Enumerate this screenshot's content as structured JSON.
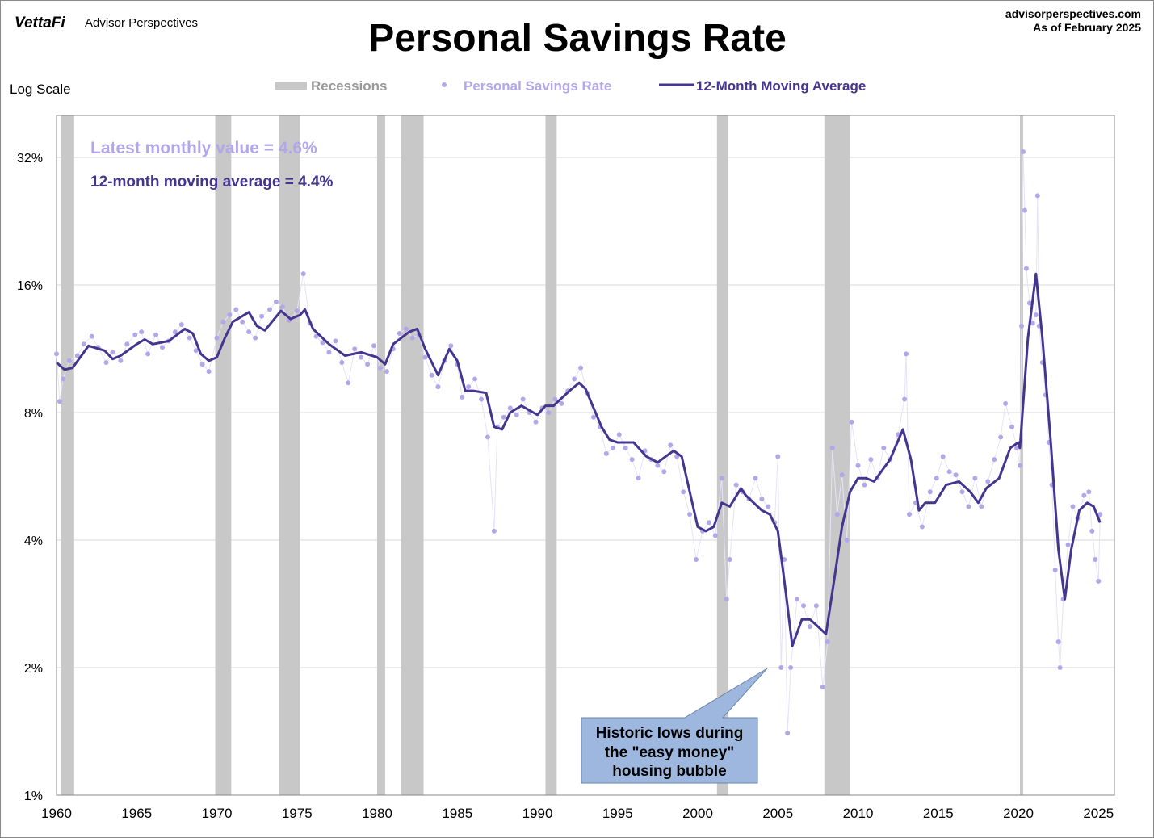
{
  "header": {
    "logo": "VettaFi",
    "brand": "Advisor Perspectives",
    "site": "advisorperspectives.com",
    "as_of": "As of February 2025"
  },
  "chart_data": {
    "type": "line",
    "title": "Personal Savings Rate",
    "scale_label": "Log Scale",
    "yscale": "log2",
    "ylim": [
      1,
      40
    ],
    "xlim": [
      1960,
      2026
    ],
    "yticks": [
      1,
      2,
      4,
      8,
      16,
      32
    ],
    "ytick_labels": [
      "1%",
      "2%",
      "4%",
      "8%",
      "16%",
      "32%"
    ],
    "xticks": [
      1960,
      1965,
      1970,
      1975,
      1980,
      1985,
      1990,
      1995,
      2000,
      2005,
      2010,
      2015,
      2020,
      2025
    ],
    "xtick_labels": [
      "1960",
      "1965",
      "1970",
      "1975",
      "1980",
      "1985",
      "1990",
      "1995",
      "2000",
      "2005",
      "2010",
      "2015",
      "2020",
      "2025"
    ],
    "grid": true,
    "legend": {
      "placement": "top-center",
      "recessions": "Recessions",
      "monthly": "Personal Savings Rate",
      "ma": "12-Month Moving Average"
    },
    "colors": {
      "recession": "#c8c8c8",
      "monthly": "#b3a7ea",
      "ma": "#45358f",
      "callout": "#9db7de"
    },
    "annotations": {
      "latest": "Latest monthly value = 4.6%",
      "ma_latest": "12-month moving average = 4.4%",
      "callout": [
        "Historic lows during",
        "the \"easy money\"",
        "housing bubble"
      ]
    },
    "recessions": [
      [
        1960.3,
        1961.1
      ],
      [
        1969.9,
        1970.9
      ],
      [
        1973.9,
        1975.2
      ],
      [
        1980.0,
        1980.5
      ],
      [
        1981.5,
        1982.9
      ],
      [
        1990.5,
        1991.2
      ],
      [
        2001.2,
        2001.9
      ],
      [
        2007.9,
        2009.5
      ],
      [
        2020.1,
        2020.3
      ]
    ],
    "series": [
      {
        "name": "12-Month Moving Average",
        "points": [
          [
            1960,
            10.5
          ],
          [
            1960.5,
            10.1
          ],
          [
            1961,
            10.2
          ],
          [
            1962,
            11.5
          ],
          [
            1963,
            11.2
          ],
          [
            1963.5,
            10.7
          ],
          [
            1964,
            10.9
          ],
          [
            1965,
            11.6
          ],
          [
            1965.5,
            11.9
          ],
          [
            1966,
            11.6
          ],
          [
            1967,
            11.8
          ],
          [
            1968,
            12.6
          ],
          [
            1968.5,
            12.3
          ],
          [
            1969,
            11.0
          ],
          [
            1969.5,
            10.6
          ],
          [
            1970,
            10.8
          ],
          [
            1970.5,
            12.0
          ],
          [
            1971,
            13.1
          ],
          [
            1972,
            13.8
          ],
          [
            1972.5,
            12.8
          ],
          [
            1973,
            12.5
          ],
          [
            1974,
            13.9
          ],
          [
            1974.6,
            13.3
          ],
          [
            1975.2,
            13.6
          ],
          [
            1975.5,
            14.0
          ],
          [
            1976,
            12.6
          ],
          [
            1977,
            11.6
          ],
          [
            1978,
            10.9
          ],
          [
            1979,
            11.1
          ],
          [
            1980,
            10.8
          ],
          [
            1980.5,
            10.4
          ],
          [
            1981,
            11.6
          ],
          [
            1982,
            12.4
          ],
          [
            1982.5,
            12.6
          ],
          [
            1983,
            11.3
          ],
          [
            1983.8,
            9.8
          ],
          [
            1984.5,
            11.3
          ],
          [
            1985,
            10.6
          ],
          [
            1985.5,
            9.0
          ],
          [
            1986,
            9.0
          ],
          [
            1986.8,
            8.9
          ],
          [
            1987.3,
            7.4
          ],
          [
            1987.8,
            7.3
          ],
          [
            1988.3,
            8.0
          ],
          [
            1989,
            8.3
          ],
          [
            1990,
            7.9
          ],
          [
            1990.5,
            8.3
          ],
          [
            1991,
            8.3
          ],
          [
            1992,
            9.0
          ],
          [
            1992.6,
            9.4
          ],
          [
            1993,
            9.1
          ],
          [
            1994,
            7.4
          ],
          [
            1994.5,
            6.9
          ],
          [
            1995,
            6.8
          ],
          [
            1996,
            6.8
          ],
          [
            1996.8,
            6.3
          ],
          [
            1997.5,
            6.1
          ],
          [
            1998,
            6.3
          ],
          [
            1998.5,
            6.5
          ],
          [
            1999,
            6.3
          ],
          [
            2000,
            4.3
          ],
          [
            2000.5,
            4.2
          ],
          [
            2001,
            4.3
          ],
          [
            2001.5,
            4.9
          ],
          [
            2002,
            4.8
          ],
          [
            2002.7,
            5.3
          ],
          [
            2003,
            5.1
          ],
          [
            2004,
            4.7
          ],
          [
            2004.5,
            4.6
          ],
          [
            2005,
            4.2
          ],
          [
            2005.5,
            3.0
          ],
          [
            2005.9,
            2.25
          ],
          [
            2006.5,
            2.6
          ],
          [
            2007,
            2.6
          ],
          [
            2007.5,
            2.5
          ],
          [
            2008,
            2.4
          ],
          [
            2008.5,
            3.2
          ],
          [
            2009,
            4.3
          ],
          [
            2009.5,
            5.2
          ],
          [
            2010,
            5.6
          ],
          [
            2010.5,
            5.6
          ],
          [
            2011,
            5.5
          ],
          [
            2012,
            6.2
          ],
          [
            2012.8,
            7.3
          ],
          [
            2013.3,
            6.2
          ],
          [
            2013.8,
            4.7
          ],
          [
            2014.2,
            4.9
          ],
          [
            2014.8,
            4.9
          ],
          [
            2015.5,
            5.4
          ],
          [
            2016.3,
            5.5
          ],
          [
            2017,
            5.2
          ],
          [
            2017.5,
            4.9
          ],
          [
            2018,
            5.3
          ],
          [
            2018.8,
            5.6
          ],
          [
            2019.5,
            6.6
          ],
          [
            2020,
            6.8
          ],
          [
            2020.1,
            6.6
          ],
          [
            2020.6,
            12.0
          ],
          [
            2021.1,
            17.0
          ],
          [
            2021.5,
            12.0
          ],
          [
            2022,
            7.0
          ],
          [
            2022.5,
            3.8
          ],
          [
            2022.9,
            2.9
          ],
          [
            2023.3,
            3.8
          ],
          [
            2023.8,
            4.7
          ],
          [
            2024.3,
            4.9
          ],
          [
            2024.7,
            4.8
          ],
          [
            2025.1,
            4.4
          ]
        ]
      },
      {
        "name": "Personal Savings Rate",
        "points": [
          [
            1960,
            11.0
          ],
          [
            1960.2,
            8.5
          ],
          [
            1960.4,
            9.6
          ],
          [
            1960.8,
            10.6
          ],
          [
            1961.3,
            10.9
          ],
          [
            1961.7,
            11.6
          ],
          [
            1962.2,
            12.1
          ],
          [
            1962.6,
            11.4
          ],
          [
            1963.1,
            10.5
          ],
          [
            1963.5,
            11.1
          ],
          [
            1964,
            10.6
          ],
          [
            1964.4,
            11.6
          ],
          [
            1964.9,
            12.2
          ],
          [
            1965.3,
            12.4
          ],
          [
            1965.7,
            11.0
          ],
          [
            1966.2,
            12.2
          ],
          [
            1966.6,
            11.4
          ],
          [
            1967,
            11.8
          ],
          [
            1967.4,
            12.4
          ],
          [
            1967.8,
            12.9
          ],
          [
            1968.3,
            12.0
          ],
          [
            1968.7,
            11.2
          ],
          [
            1969.1,
            10.4
          ],
          [
            1969.5,
            10.0
          ],
          [
            1970,
            12.0
          ],
          [
            1970.4,
            13.1
          ],
          [
            1970.8,
            13.6
          ],
          [
            1971.2,
            14.0
          ],
          [
            1971.6,
            13.1
          ],
          [
            1972,
            12.4
          ],
          [
            1972.4,
            12.0
          ],
          [
            1972.8,
            13.5
          ],
          [
            1973.3,
            14.0
          ],
          [
            1973.7,
            14.6
          ],
          [
            1974.1,
            14.2
          ],
          [
            1974.5,
            13.2
          ],
          [
            1975,
            13.9
          ],
          [
            1975.4,
            17.0
          ],
          [
            1975.8,
            13.0
          ],
          [
            1976.2,
            12.1
          ],
          [
            1976.6,
            11.7
          ],
          [
            1977,
            11.1
          ],
          [
            1977.4,
            11.8
          ],
          [
            1977.8,
            10.5
          ],
          [
            1978.2,
            9.4
          ],
          [
            1978.6,
            11.3
          ],
          [
            1979,
            10.8
          ],
          [
            1979.4,
            10.4
          ],
          [
            1979.8,
            11.5
          ],
          [
            1980.2,
            10.2
          ],
          [
            1980.6,
            10.0
          ],
          [
            1981,
            11.3
          ],
          [
            1981.4,
            12.3
          ],
          [
            1981.8,
            12.6
          ],
          [
            1982.2,
            12.0
          ],
          [
            1982.6,
            12.2
          ],
          [
            1983,
            10.8
          ],
          [
            1983.4,
            9.8
          ],
          [
            1983.8,
            9.2
          ],
          [
            1984.2,
            10.6
          ],
          [
            1984.6,
            11.5
          ],
          [
            1985,
            10.4
          ],
          [
            1985.3,
            8.7
          ],
          [
            1985.7,
            9.2
          ],
          [
            1986.1,
            9.6
          ],
          [
            1986.5,
            8.6
          ],
          [
            1986.9,
            7.0
          ],
          [
            1987.3,
            4.2
          ],
          [
            1987.5,
            7.4
          ],
          [
            1987.9,
            7.8
          ],
          [
            1988.3,
            8.2
          ],
          [
            1988.7,
            7.9
          ],
          [
            1989.1,
            8.6
          ],
          [
            1989.5,
            8.0
          ],
          [
            1989.9,
            7.6
          ],
          [
            1990.3,
            8.2
          ],
          [
            1990.7,
            8.0
          ],
          [
            1991.1,
            8.6
          ],
          [
            1991.5,
            8.4
          ],
          [
            1991.9,
            9.0
          ],
          [
            1992.3,
            9.6
          ],
          [
            1992.7,
            10.2
          ],
          [
            1993.1,
            8.9
          ],
          [
            1993.5,
            7.8
          ],
          [
            1993.9,
            7.4
          ],
          [
            1994.3,
            6.4
          ],
          [
            1994.7,
            6.6
          ],
          [
            1995.1,
            7.1
          ],
          [
            1995.5,
            6.6
          ],
          [
            1995.9,
            6.2
          ],
          [
            1996.3,
            5.6
          ],
          [
            1996.7,
            6.5
          ],
          [
            1997.1,
            6.2
          ],
          [
            1997.5,
            6.0
          ],
          [
            1997.9,
            5.8
          ],
          [
            1998.3,
            6.7
          ],
          [
            1998.7,
            6.3
          ],
          [
            1999.1,
            5.2
          ],
          [
            1999.5,
            4.6
          ],
          [
            1999.9,
            3.6
          ],
          [
            2000.3,
            4.2
          ],
          [
            2000.7,
            4.4
          ],
          [
            2001.1,
            4.1
          ],
          [
            2001.5,
            5.6
          ],
          [
            2001.8,
            2.9
          ],
          [
            2002,
            3.6
          ],
          [
            2002.4,
            5.4
          ],
          [
            2002.8,
            5.2
          ],
          [
            2003.2,
            5.0
          ],
          [
            2003.6,
            5.6
          ],
          [
            2004,
            5.0
          ],
          [
            2004.4,
            4.8
          ],
          [
            2004.8,
            4.4
          ],
          [
            2005,
            6.3
          ],
          [
            2005.2,
            2.0
          ],
          [
            2005.4,
            3.6
          ],
          [
            2005.6,
            1.4
          ],
          [
            2005.8,
            2.0
          ],
          [
            2006.2,
            2.9
          ],
          [
            2006.6,
            2.8
          ],
          [
            2007,
            2.5
          ],
          [
            2007.4,
            2.8
          ],
          [
            2007.8,
            1.8
          ],
          [
            2008.1,
            2.3
          ],
          [
            2008.4,
            6.6
          ],
          [
            2008.7,
            4.6
          ],
          [
            2009,
            5.7
          ],
          [
            2009.3,
            4.0
          ],
          [
            2009.6,
            7.6
          ],
          [
            2010,
            6.0
          ],
          [
            2010.4,
            5.4
          ],
          [
            2010.8,
            6.2
          ],
          [
            2011.2,
            5.6
          ],
          [
            2011.6,
            6.6
          ],
          [
            2012,
            6.2
          ],
          [
            2012.5,
            7.1
          ],
          [
            2012.9,
            8.6
          ],
          [
            2013,
            11.0
          ],
          [
            2013.2,
            4.6
          ],
          [
            2013.6,
            4.9
          ],
          [
            2014,
            4.3
          ],
          [
            2014.5,
            5.2
          ],
          [
            2014.9,
            5.6
          ],
          [
            2015.3,
            6.3
          ],
          [
            2015.7,
            5.8
          ],
          [
            2016.1,
            5.7
          ],
          [
            2016.5,
            5.2
          ],
          [
            2016.9,
            4.8
          ],
          [
            2017.3,
            5.6
          ],
          [
            2017.7,
            4.8
          ],
          [
            2018.1,
            5.5
          ],
          [
            2018.5,
            6.2
          ],
          [
            2018.9,
            7.0
          ],
          [
            2019.2,
            8.4
          ],
          [
            2019.6,
            7.4
          ],
          [
            2019.9,
            6.6
          ],
          [
            2020.1,
            6.0
          ],
          [
            2020.2,
            12.8
          ],
          [
            2020.3,
            33.0
          ],
          [
            2020.4,
            24.0
          ],
          [
            2020.5,
            17.5
          ],
          [
            2020.7,
            14.5
          ],
          [
            2020.9,
            13.0
          ],
          [
            2021.1,
            13.6
          ],
          [
            2021.2,
            26.0
          ],
          [
            2021.3,
            12.8
          ],
          [
            2021.5,
            10.5
          ],
          [
            2021.7,
            8.8
          ],
          [
            2021.9,
            6.8
          ],
          [
            2022.1,
            5.4
          ],
          [
            2022.3,
            3.4
          ],
          [
            2022.5,
            2.3
          ],
          [
            2022.6,
            2.0
          ],
          [
            2022.8,
            2.9
          ],
          [
            2023.1,
            3.9
          ],
          [
            2023.4,
            4.8
          ],
          [
            2023.7,
            4.5
          ],
          [
            2024.1,
            5.1
          ],
          [
            2024.4,
            5.2
          ],
          [
            2024.6,
            4.2
          ],
          [
            2024.8,
            3.6
          ],
          [
            2025.0,
            3.2
          ],
          [
            2025.1,
            4.6
          ]
        ]
      }
    ]
  }
}
